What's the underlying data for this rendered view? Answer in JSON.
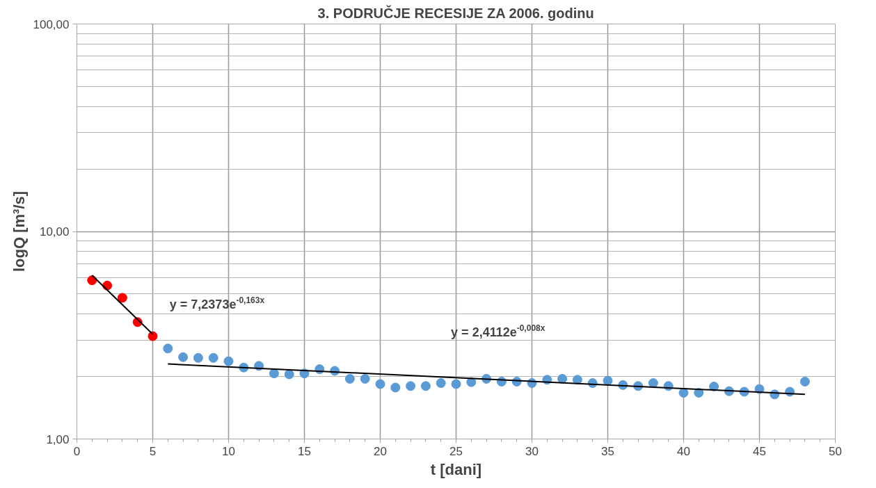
{
  "chart_data": {
    "type": "scatter",
    "title": "3. PODRUČJE RECESIJE ZA 2006. godinu",
    "xlabel": "t [dani]",
    "ylabel": "logQ [m³/s]",
    "log": "y",
    "grid": true,
    "xlim": [
      0,
      50
    ],
    "xticks": [
      0,
      5,
      10,
      15,
      20,
      25,
      30,
      35,
      40,
      45,
      50
    ],
    "ylim": [
      1,
      100
    ],
    "yticks": [
      {
        "value": 1,
        "label": "1,00"
      },
      {
        "value": 10,
        "label": "10,00"
      },
      {
        "value": 100,
        "label": "100,00"
      }
    ],
    "series": [
      {
        "marker": "circle",
        "color": "#ff0000",
        "x": [
          1,
          2,
          3,
          4,
          5
        ],
        "values": [
          5.82,
          5.49,
          4.79,
          3.66,
          3.13
        ]
      },
      {
        "marker": "circle",
        "color": "#5b9bd5",
        "x": [
          6,
          7,
          8,
          9,
          10,
          11,
          12,
          13,
          14,
          15,
          16,
          17,
          18,
          19,
          20,
          21,
          22,
          23,
          24,
          25,
          26,
          27,
          28,
          29,
          30,
          31,
          32,
          33,
          34,
          35,
          36,
          37,
          38,
          39,
          40,
          41,
          42,
          43,
          44,
          45,
          46,
          47,
          48
        ],
        "values": [
          2.73,
          2.48,
          2.46,
          2.46,
          2.37,
          2.21,
          2.25,
          2.07,
          2.05,
          2.07,
          2.17,
          2.13,
          1.95,
          1.95,
          1.84,
          1.77,
          1.8,
          1.8,
          1.86,
          1.84,
          1.88,
          1.95,
          1.89,
          1.89,
          1.86,
          1.93,
          1.95,
          1.93,
          1.86,
          1.91,
          1.82,
          1.8,
          1.86,
          1.8,
          1.67,
          1.67,
          1.79,
          1.7,
          1.69,
          1.74,
          1.64,
          1.69,
          1.89
        ]
      },
      {
        "type": "line",
        "marker": "none",
        "color": "#000000",
        "x": [
          1,
          5
        ],
        "values": [
          6.15,
          3.2
        ]
      },
      {
        "type": "line",
        "marker": "none",
        "color": "#000000",
        "x": [
          6,
          48
        ],
        "values": [
          2.3,
          1.64
        ]
      }
    ],
    "annotations": [
      "y = 7,2373e$^{-0,163x}$",
      "y = 2,4112e$^{-0,008x}$"
    ]
  }
}
